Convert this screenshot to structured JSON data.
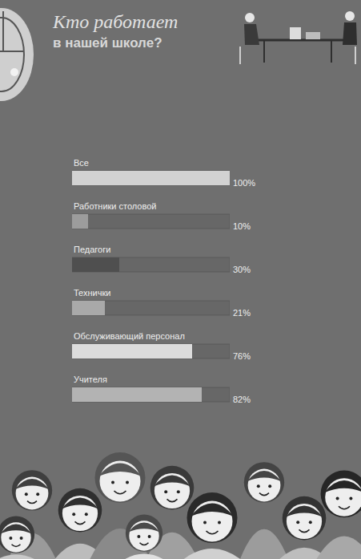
{
  "chart_data": {
    "type": "bar",
    "title": "Кто работает",
    "subtitle": "в нашей школе?",
    "orientation": "horizontal",
    "categories": [
      "Все",
      "Работники столовой",
      "Педагоги",
      "Технички",
      "Обслуживающий персонал",
      "Учителя"
    ],
    "values": [
      100,
      10,
      30,
      21,
      76,
      82
    ],
    "value_labels": [
      "100%",
      "10%",
      "30%",
      "21%",
      "76%",
      "82%"
    ],
    "colors": [
      "#d2d2d2",
      "#9c9c9c",
      "#4f4f4f",
      "#a9a9a9",
      "#dcdcdc",
      "#b3b3b3"
    ],
    "xlim": [
      0,
      100
    ],
    "data_labels": true,
    "tick_labels": false,
    "grid": false
  }
}
